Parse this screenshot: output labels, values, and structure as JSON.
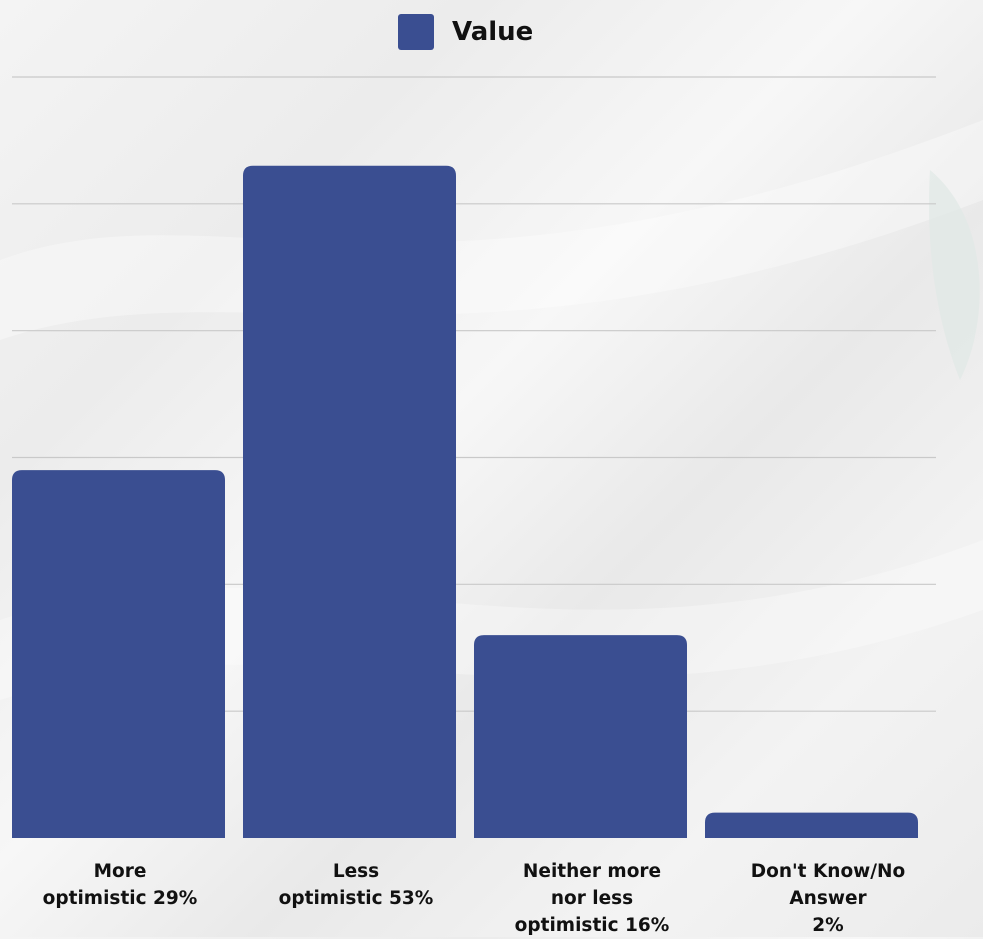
{
  "chart_data": {
    "type": "bar",
    "categories": [
      "More\noptimistic 29%",
      "Less\noptimistic 53%",
      "Neither more\nnor less\noptimistic 16%",
      "Don't Know/No Answer\n2%"
    ],
    "series": [
      {
        "name": "Value",
        "values": [
          29,
          53,
          16,
          2
        ]
      }
    ],
    "ylim": [
      0,
      60
    ],
    "grid": true,
    "legend": "top-center",
    "bar_color": "#3a4e91",
    "grid_color": "#c9c9c9",
    "xlabel": "",
    "ylabel": ""
  }
}
